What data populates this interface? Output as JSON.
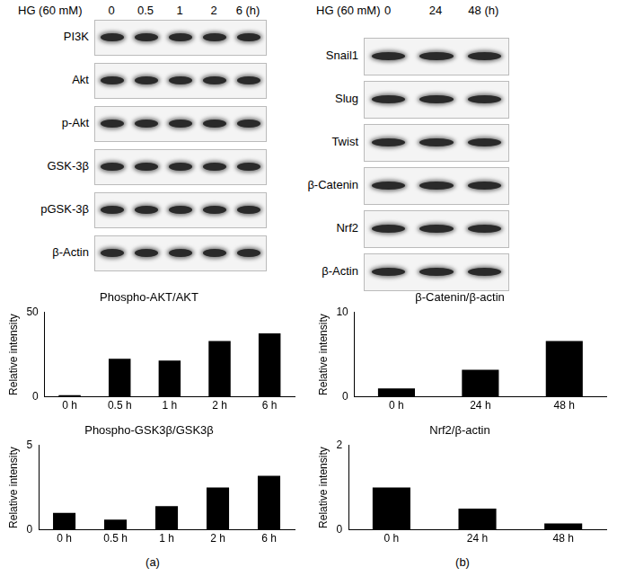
{
  "panels": [
    {
      "label": "(a)",
      "treatment": "HG (60 mM)",
      "lanes": [
        "0",
        "0.5",
        "1",
        "2",
        "6 (h)"
      ],
      "blots": [
        "PI3K",
        "Akt",
        "p-Akt",
        "GSK-3β",
        "pGSK-3β",
        "β-Actin"
      ]
    },
    {
      "label": "(b)",
      "treatment": "HG (60 mM)",
      "lanes": [
        "0",
        "24",
        "48 (h)"
      ],
      "blots": [
        "Snail1",
        "Slug",
        "Twist",
        "β-Catenin",
        "Nrf2",
        "β-Actin"
      ]
    }
  ],
  "chart_data": [
    {
      "type": "bar",
      "title": "Phospho-AKT/AKT",
      "y_label": "Relative intensity",
      "categories": [
        "0 h",
        "0.5 h",
        "1 h",
        "2 h",
        "6 h"
      ],
      "values": [
        1,
        22.5,
        21.5,
        33,
        37.5
      ],
      "color": "#000000",
      "ylim": [
        0,
        50
      ],
      "yticks": [
        0,
        50
      ],
      "grid": false
    },
    {
      "type": "bar",
      "title": "Phospho-GSK3β/GSK3β",
      "y_label": "Relative intensity",
      "categories": [
        "0 h",
        "0.5 h",
        "1 h",
        "2 h",
        "6 h"
      ],
      "values": [
        1,
        0.6,
        1.4,
        2.5,
        3.2
      ],
      "color": "#000000",
      "ylim": [
        0,
        5
      ],
      "yticks": [
        0,
        5
      ],
      "grid": false
    },
    {
      "type": "bar",
      "title": "β-Catenin/β-actin",
      "y_label": "Relative intensity",
      "categories": [
        "0 h",
        "24 h",
        "48 h"
      ],
      "values": [
        1,
        3.2,
        6.6
      ],
      "color": "#000000",
      "ylim": [
        0,
        10
      ],
      "yticks": [
        0,
        10
      ],
      "grid": false
    },
    {
      "type": "bar",
      "title": "Nrf2/β-actin",
      "y_label": "Relative intensity",
      "categories": [
        "0 h",
        "24 h",
        "48 h"
      ],
      "values": [
        1,
        0.5,
        0.15
      ],
      "color": "#000000",
      "ylim": [
        0,
        2
      ],
      "yticks": [
        0,
        2
      ],
      "grid": false
    }
  ]
}
